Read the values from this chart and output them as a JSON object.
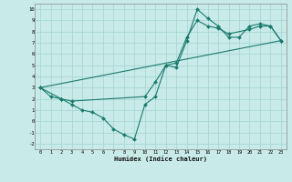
{
  "xlabel": "Humidex (Indice chaleur)",
  "bg_color": "#c8eae8",
  "grid_color": "#a8d8d4",
  "line_color": "#1a7a6e",
  "xlim": [
    -0.5,
    23.5
  ],
  "ylim": [
    -2.5,
    10.5
  ],
  "line1_x": [
    0,
    1,
    2,
    3,
    4,
    5,
    6,
    7,
    8,
    9,
    10,
    11,
    12,
    13,
    14,
    15,
    16,
    17,
    18,
    19,
    20,
    21,
    22,
    23
  ],
  "line1_y": [
    3.0,
    2.2,
    2.0,
    1.5,
    1.0,
    0.8,
    0.3,
    -0.7,
    -1.2,
    -1.6,
    1.5,
    2.2,
    5.0,
    4.8,
    7.2,
    10.0,
    9.2,
    8.5,
    7.5,
    7.5,
    8.5,
    8.7,
    8.5,
    7.2
  ],
  "line2_x": [
    0,
    2,
    3,
    10,
    11,
    12,
    13,
    14,
    15,
    16,
    17,
    18,
    20,
    21,
    22,
    23
  ],
  "line2_y": [
    3.0,
    2.0,
    1.8,
    2.2,
    3.5,
    5.0,
    5.2,
    7.5,
    9.0,
    8.5,
    8.3,
    7.8,
    8.2,
    8.5,
    8.5,
    7.2
  ],
  "line3_x": [
    0,
    23
  ],
  "line3_y": [
    3.0,
    7.2
  ]
}
